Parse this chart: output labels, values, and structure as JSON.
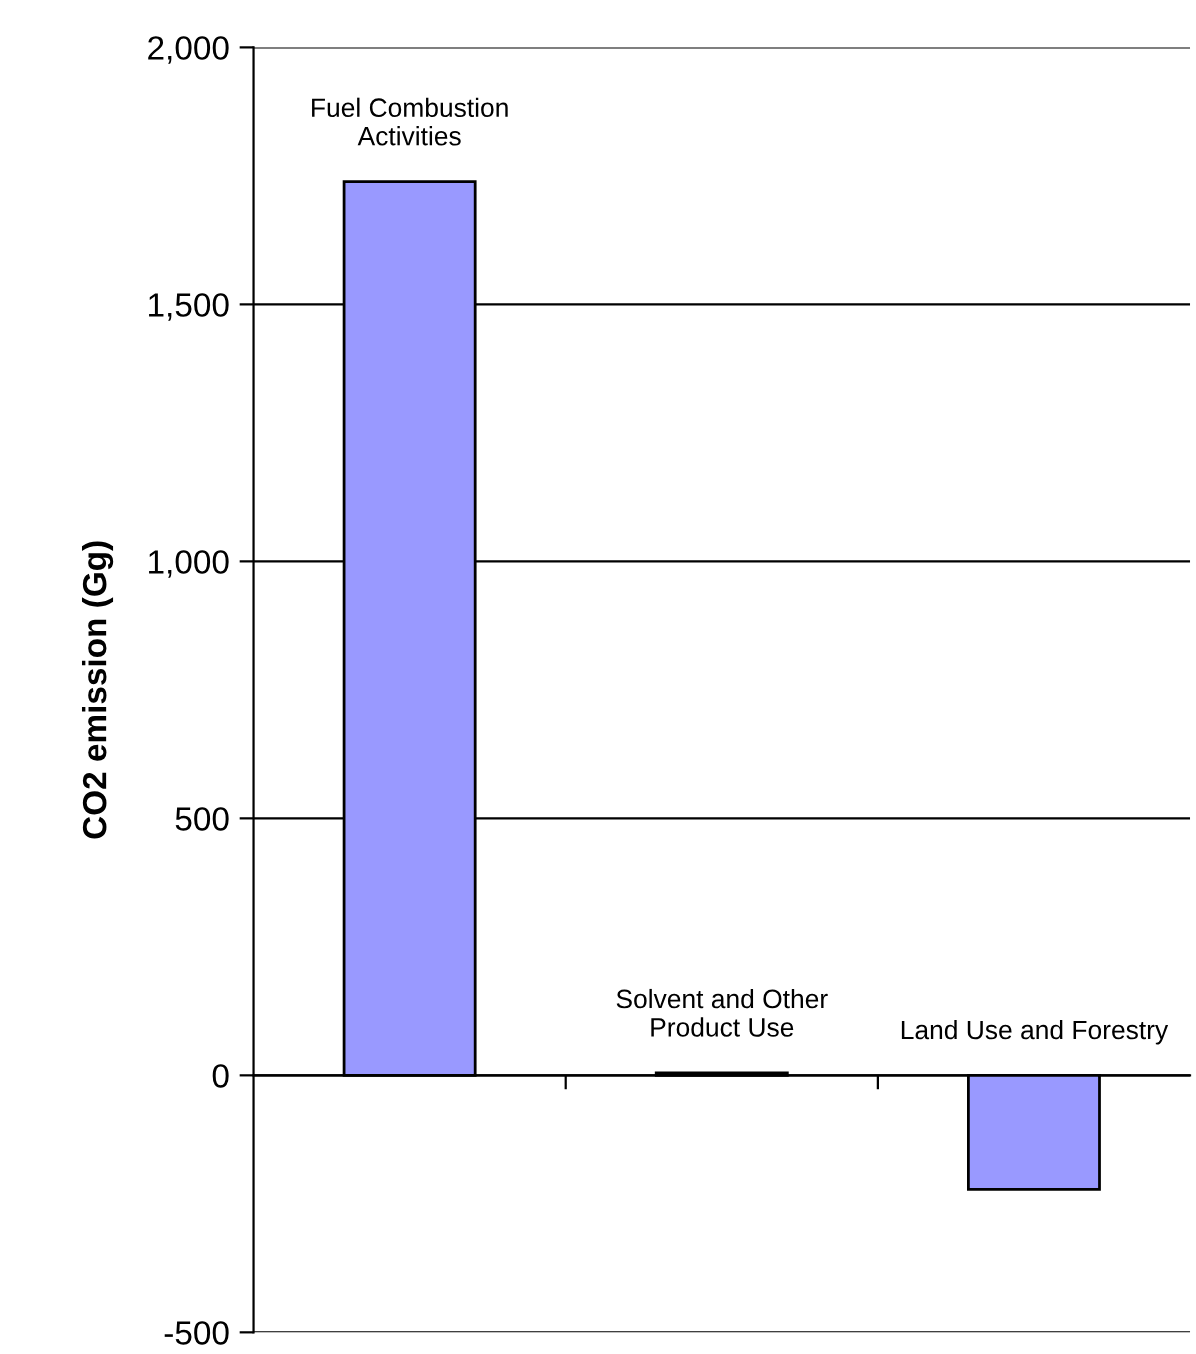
{
  "chart_data": {
    "type": "bar",
    "ylabel": "CO2 emission (Gg)",
    "categories": [
      "Fuel Combustion Activities",
      "Solvent and Other Product Use",
      "Land Use and Forestry"
    ],
    "values": [
      1739,
      5,
      -222
    ],
    "color": "#9999ff",
    "ylim": [
      -500,
      2000
    ],
    "yticks": [
      {
        "value": -500,
        "label": "-500"
      },
      0,
      500,
      {
        "value": 1000,
        "label": "1,000"
      },
      {
        "value": 1500,
        "label": "1,500"
      },
      {
        "value": 2000,
        "label": "2,000"
      }
    ],
    "grid": "y"
  }
}
